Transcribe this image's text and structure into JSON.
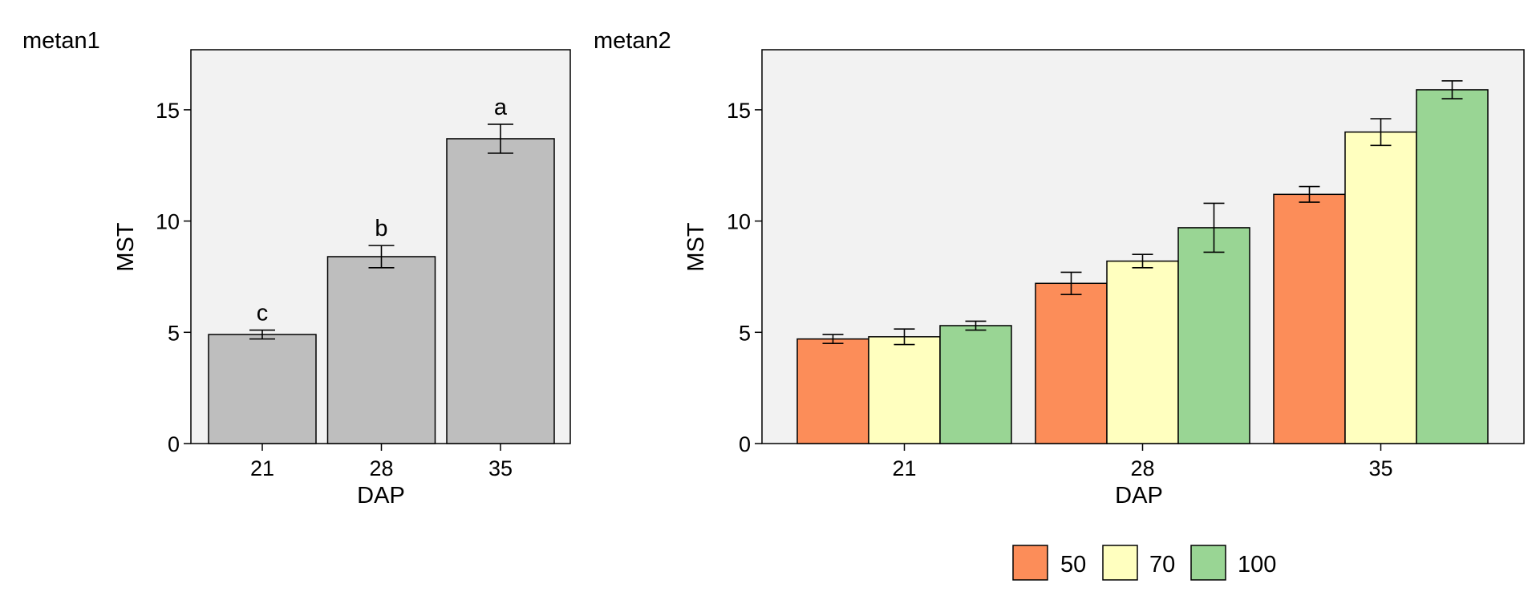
{
  "panels": [
    {
      "tag": "metan1",
      "xlabel": "DAP",
      "ylabel": "MST",
      "ylim": [
        0,
        17.7
      ],
      "yticks": [
        0,
        5,
        10,
        15
      ]
    },
    {
      "tag": "metan2",
      "xlabel": "DAP",
      "ylabel": "MST",
      "ylim": [
        0,
        17.7
      ],
      "yticks": [
        0,
        5,
        10,
        15
      ]
    }
  ],
  "legend": {
    "position": "bottom",
    "items": [
      {
        "label": "50",
        "color": "#FC8D59"
      },
      {
        "label": "70",
        "color": "#FFFFBF"
      },
      {
        "label": "100",
        "color": "#99D594"
      }
    ]
  },
  "chart_data": [
    {
      "type": "bar",
      "categories": [
        "21",
        "28",
        "35"
      ],
      "values": [
        4.9,
        8.4,
        13.7
      ],
      "errors": [
        0.2,
        0.5,
        0.65
      ],
      "labels": [
        "c",
        "b",
        "a"
      ],
      "title": "metan1",
      "xlabel": "DAP",
      "ylabel": "MST",
      "ylim": [
        0,
        17.7
      ],
      "grid": false,
      "bar_color": "#BEBEBE",
      "panel_background": "#F2F2F2"
    },
    {
      "type": "bar",
      "categories": [
        "21",
        "28",
        "35"
      ],
      "series": [
        {
          "name": "50",
          "values": [
            4.7,
            7.2,
            11.2
          ],
          "errors": [
            0.2,
            0.5,
            0.35
          ]
        },
        {
          "name": "70",
          "values": [
            4.8,
            8.2,
            14.0
          ],
          "errors": [
            0.35,
            0.3,
            0.6
          ]
        },
        {
          "name": "100",
          "values": [
            5.3,
            9.7,
            15.9
          ],
          "errors": [
            0.2,
            1.1,
            0.4
          ]
        }
      ],
      "title": "metan2",
      "xlabel": "DAP",
      "ylabel": "MST",
      "ylim": [
        0,
        17.7
      ],
      "grid": false,
      "legend": "bottom",
      "panel_background": "#F2F2F2"
    }
  ]
}
